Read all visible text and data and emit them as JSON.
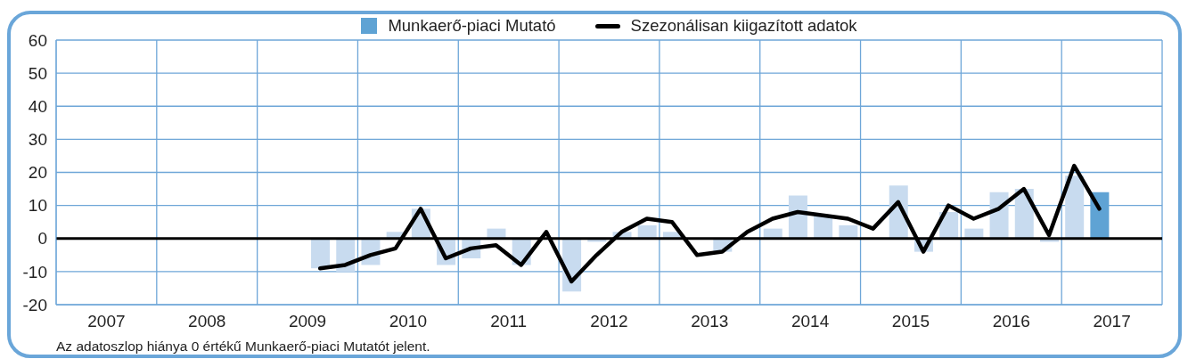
{
  "chart_data": {
    "type": "bar",
    "x": [
      2009.625,
      2009.875,
      2010.125,
      2010.375,
      2010.625,
      2010.875,
      2011.125,
      2011.375,
      2011.625,
      2011.875,
      2012.125,
      2012.375,
      2012.625,
      2012.875,
      2013.125,
      2013.375,
      2013.625,
      2013.875,
      2014.125,
      2014.375,
      2014.625,
      2014.875,
      2015.125,
      2015.375,
      2015.625,
      2015.875,
      2016.125,
      2016.375,
      2016.625,
      2016.875,
      2017.125,
      2017.375
    ],
    "xlim": [
      2007,
      2018
    ],
    "xticks": [
      {
        "value": 2007,
        "label": null
      },
      {
        "value": 2007.5,
        "label": "2007"
      },
      {
        "value": 2008,
        "label": null
      },
      {
        "value": 2008.5,
        "label": "2008"
      },
      {
        "value": 2009,
        "label": null
      },
      {
        "value": 2009.5,
        "label": "2009"
      },
      {
        "value": 2010,
        "label": null
      },
      {
        "value": 2010.5,
        "label": "2010"
      },
      {
        "value": 2011,
        "label": null
      },
      {
        "value": 2011.5,
        "label": "2011"
      },
      {
        "value": 2012,
        "label": null
      },
      {
        "value": 2012.5,
        "label": "2012"
      },
      {
        "value": 2013,
        "label": null
      },
      {
        "value": 2013.5,
        "label": "2013"
      },
      {
        "value": 2014,
        "label": null
      },
      {
        "value": 2014.5,
        "label": "2014"
      },
      {
        "value": 2015,
        "label": null
      },
      {
        "value": 2015.5,
        "label": "2015"
      },
      {
        "value": 2016,
        "label": null
      },
      {
        "value": 2016.5,
        "label": "2016"
      },
      {
        "value": 2017,
        "label": null
      },
      {
        "value": 2017.5,
        "label": "2017"
      },
      {
        "value": 2018,
        "label": null
      }
    ],
    "ylim": [
      -20,
      60
    ],
    "yticks": [
      -20,
      -10,
      0,
      10,
      20,
      30,
      40,
      50,
      60
    ],
    "grid": true,
    "legend": "top",
    "ref_lines": [
      {
        "axis": "y",
        "value": 0,
        "color": "#000000"
      }
    ],
    "annotations": [
      "Az adatoszlop hiánya 0 értékű Munkaerő-piaci Mutatót jelent."
    ],
    "series": [
      {
        "name": "Munkaerő-piaci Mutató",
        "color": "#5fa3d4",
        "colors": [
          "#c8dbef",
          "#c8dbef",
          "#c8dbef",
          "#c8dbef",
          "#c8dbef",
          "#c8dbef",
          "#c8dbef",
          "#c8dbef",
          "#c8dbef",
          "#c8dbef",
          "#c8dbef",
          "#c8dbef",
          "#c8dbef",
          "#c8dbef",
          "#c8dbef",
          "#c8dbef",
          "#c8dbef",
          "#c8dbef",
          "#c8dbef",
          "#c8dbef",
          "#c8dbef",
          "#c8dbef",
          "#c8dbef",
          "#c8dbef",
          "#c8dbef",
          "#c8dbef",
          "#c8dbef",
          "#c8dbef",
          "#c8dbef",
          "#c8dbef",
          "#c8dbef",
          "#5fa3d4"
        ],
        "values": [
          -9,
          -10,
          -8,
          2,
          9,
          -8,
          -6,
          3,
          -8,
          0,
          -16,
          -1,
          2,
          4,
          2,
          0,
          -4,
          0,
          3,
          13,
          7,
          4,
          0,
          16,
          -4,
          8,
          3,
          14,
          15,
          -1,
          19,
          14
        ]
      },
      {
        "name": "Szezonálisan kiigazított adatok",
        "type": "line",
        "color": "#000000",
        "values": [
          -9,
          -8,
          -5,
          -3,
          9,
          -6,
          -3,
          -2,
          -8,
          2,
          -13,
          -5,
          2,
          6,
          5,
          -5,
          -4,
          2,
          6,
          8,
          7,
          6,
          3,
          11,
          -4,
          10,
          6,
          9,
          15,
          1,
          22,
          9
        ]
      }
    ]
  }
}
